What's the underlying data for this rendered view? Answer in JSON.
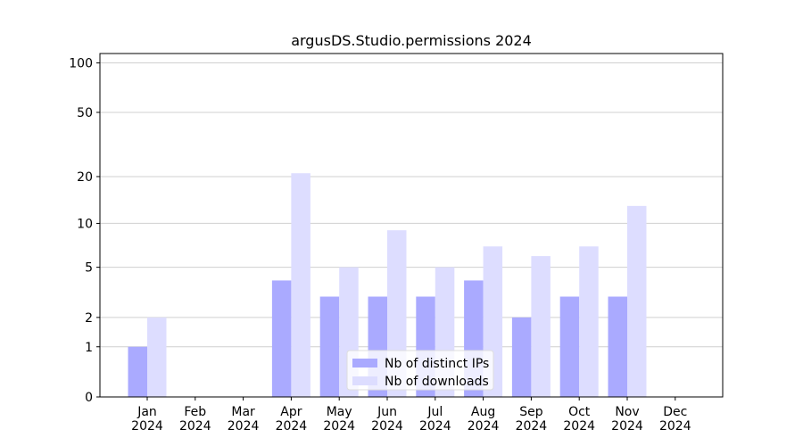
{
  "chart_data": {
    "type": "bar",
    "title": "argusDS.Studio.permissions 2024",
    "categories": [
      "Jan 2024",
      "Feb 2024",
      "Mar 2024",
      "Apr 2024",
      "May 2024",
      "Jun 2024",
      "Jul 2024",
      "Aug 2024",
      "Sep 2024",
      "Oct 2024",
      "Nov 2024",
      "Dec 2024"
    ],
    "series": [
      {
        "name": "Nb of distinct IPs",
        "color": "#aaaaff",
        "values": [
          1,
          0,
          0,
          4,
          3,
          3,
          3,
          4,
          2,
          3,
          3,
          0
        ]
      },
      {
        "name": "Nb of downloads",
        "color": "#ddddff",
        "values": [
          2,
          0,
          0,
          21,
          5,
          9,
          5,
          7,
          6,
          7,
          13,
          0
        ]
      }
    ],
    "yscale": "log1p",
    "ylim": [
      0,
      114
    ],
    "yticks": [
      0,
      1,
      2,
      5,
      10,
      20,
      50,
      100
    ],
    "grid": true,
    "legend": "lower center"
  }
}
